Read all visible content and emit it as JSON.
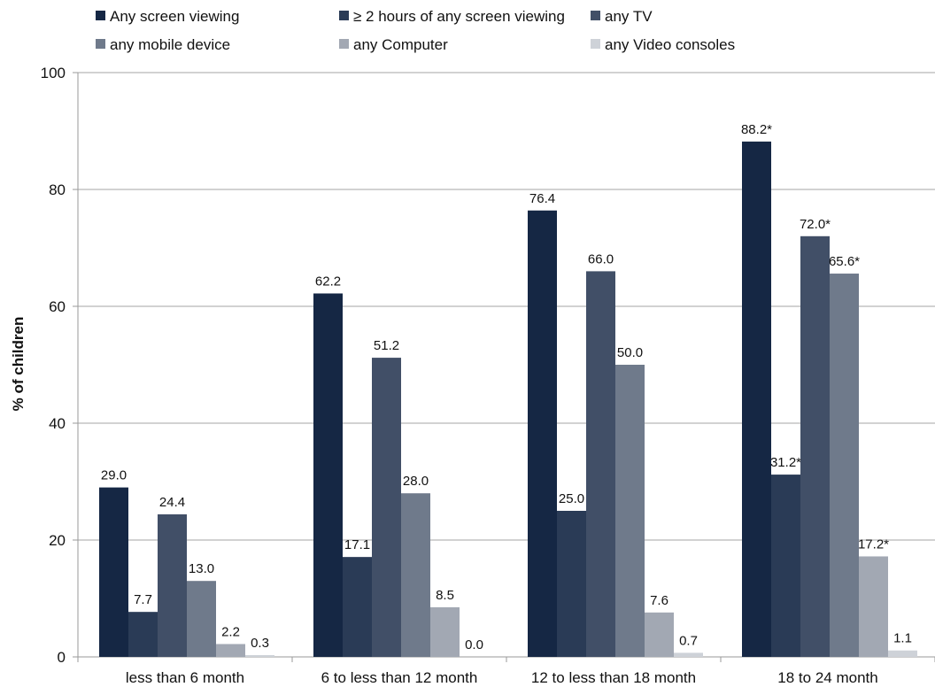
{
  "chart_data": {
    "type": "bar",
    "ylabel": "% of children",
    "ylim": [
      0,
      100
    ],
    "yticks": [
      0,
      20,
      40,
      60,
      80,
      100
    ],
    "grid": true,
    "legend_position": "top",
    "categories": [
      "less than 6 month",
      "6 to less than 12 month",
      "12 to less than 18 month",
      "18 to 24 month"
    ],
    "series": [
      {
        "name": "Any screen viewing",
        "color": "#152744",
        "values": [
          29.0,
          62.2,
          76.4,
          88.2
        ],
        "labels": [
          "29.0",
          "62.2",
          "76.4",
          "88.2*"
        ]
      },
      {
        "name": "≥ 2 hours of any screen viewing",
        "color": "#2a3b56",
        "values": [
          7.7,
          17.1,
          25.0,
          31.2
        ],
        "labels": [
          "7.7",
          "17.1",
          "25.0",
          "31.2*"
        ]
      },
      {
        "name": "any TV",
        "color": "#414f67",
        "values": [
          24.4,
          51.2,
          66.0,
          72.0
        ],
        "labels": [
          "24.4",
          "51.2",
          "66.0",
          "72.0*"
        ]
      },
      {
        "name": "any mobile device",
        "color": "#6f7a8b",
        "values": [
          13.0,
          28.0,
          50.0,
          65.6
        ],
        "labels": [
          "13.0",
          "28.0",
          "50.0",
          "65.6*"
        ]
      },
      {
        "name": "any Computer",
        "color": "#a2a8b3",
        "values": [
          2.2,
          8.5,
          7.6,
          17.2
        ],
        "labels": [
          "2.2",
          "8.5",
          "7.6",
          "17.2*"
        ]
      },
      {
        "name": "any Video consoles",
        "color": "#ced2d8",
        "values": [
          0.3,
          0.0,
          0.7,
          1.1
        ],
        "labels": [
          "0.3",
          "0.0",
          "0.7",
          "1.1"
        ]
      }
    ]
  }
}
